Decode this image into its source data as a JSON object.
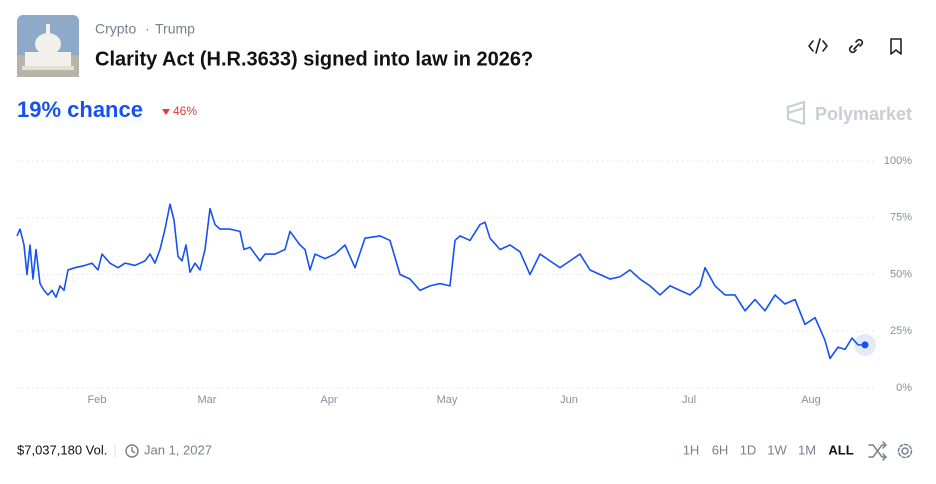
{
  "header": {
    "tags": [
      "Crypto",
      "Trump"
    ],
    "title": "Clarity Act (H.R.3633) signed into law in 2026?"
  },
  "summary": {
    "chance": "19% chance",
    "change": "46%",
    "brand": "Polymarket"
  },
  "chart_data": {
    "type": "line",
    "x": [
      0,
      0.75,
      1.75,
      2.5,
      3.25,
      4,
      4.75,
      5.75,
      6.75,
      7.75,
      8.75,
      9.75,
      10.75,
      11.75,
      12.75,
      14.5,
      17,
      18.75,
      20.25,
      21.25,
      23.25,
      25.25,
      27,
      29.5,
      32,
      33.25,
      34.5,
      35.75,
      37,
      38.25,
      39.25,
      40.25,
      41.25,
      42.25,
      43.25,
      44.5,
      45.75,
      47,
      48.25,
      49.5,
      50.75,
      53.25,
      55.75,
      56.75,
      58.25,
      59.5,
      60.75,
      62,
      64.5,
      67,
      68.25,
      69.5,
      70.75,
      72,
      73.25,
      74.5,
      77,
      79.5,
      82,
      84.5,
      87,
      90.75,
      93.25,
      95.75,
      98.25,
      100.75,
      103.25,
      105.75,
      108.25,
      109.5,
      110.75,
      113.25,
      115.75,
      117,
      118.25,
      120.75,
      123.25,
      125.75,
      128.25,
      130.75,
      133.25,
      135.75,
      138.25,
      140.75,
      143.25,
      145.75,
      148.25,
      150.75,
      153.25,
      155.75,
      158.25,
      160.75,
      163.25,
      165.75,
      168.25,
      170.75,
      172,
      174.5,
      177,
      179.5,
      182,
      184.5,
      187,
      189.5,
      192,
      194.5,
      197,
      199.5,
      200.75,
      202,
      203.25,
      205.25,
      207,
      208.75,
      210.25,
      212
    ],
    "series": [
      {
        "color": "#1652f0",
        "values": [
          67,
          70,
          63,
          50,
          63,
          48,
          61,
          46,
          43,
          41,
          43,
          40,
          45,
          43,
          52,
          53,
          54,
          55,
          52,
          59,
          55,
          53,
          55,
          54,
          56,
          59,
          55,
          61,
          70,
          81,
          74,
          58,
          56,
          63,
          51,
          55,
          52,
          61,
          79,
          72,
          70,
          70,
          69,
          61,
          62,
          59,
          56,
          59,
          59,
          61,
          69,
          66,
          63,
          61,
          52,
          59,
          57,
          59,
          63,
          53,
          66,
          67,
          65,
          50,
          48,
          43,
          45,
          46,
          45,
          65,
          67,
          65,
          72,
          73,
          66,
          61,
          63,
          60,
          50,
          59,
          56,
          53,
          56,
          59,
          52,
          50,
          48,
          49,
          52,
          48,
          45,
          41,
          45,
          43,
          41,
          45,
          53,
          45,
          41,
          41,
          34,
          39,
          34,
          41,
          37,
          39,
          28,
          31,
          26,
          21,
          13,
          18,
          17,
          22,
          19,
          19
        ]
      }
    ],
    "xlim": [
      0,
      212
    ],
    "xticks": [
      {
        "value": 20,
        "label": "Feb"
      },
      {
        "value": 47.5,
        "label": "Mar"
      },
      {
        "value": 78,
        "label": "Apr"
      },
      {
        "value": 107.5,
        "label": "May"
      },
      {
        "value": 138,
        "label": "Jun"
      },
      {
        "value": 168,
        "label": "Jul"
      },
      {
        "value": 198.5,
        "label": "Aug"
      }
    ],
    "ylim": [
      0,
      100
    ],
    "yticks": [
      {
        "value": 0,
        "label": "0%"
      },
      {
        "value": 25,
        "label": "25%"
      },
      {
        "value": 50,
        "label": "50%"
      },
      {
        "value": 75,
        "label": "75%"
      },
      {
        "value": 100,
        "label": "100%"
      }
    ],
    "grid": true
  },
  "footer": {
    "volume": "$7,037,180 Vol.",
    "end_date": "Jan 1, 2027",
    "ranges": [
      "1H",
      "6H",
      "1D",
      "1W",
      "1M",
      "ALL"
    ]
  }
}
